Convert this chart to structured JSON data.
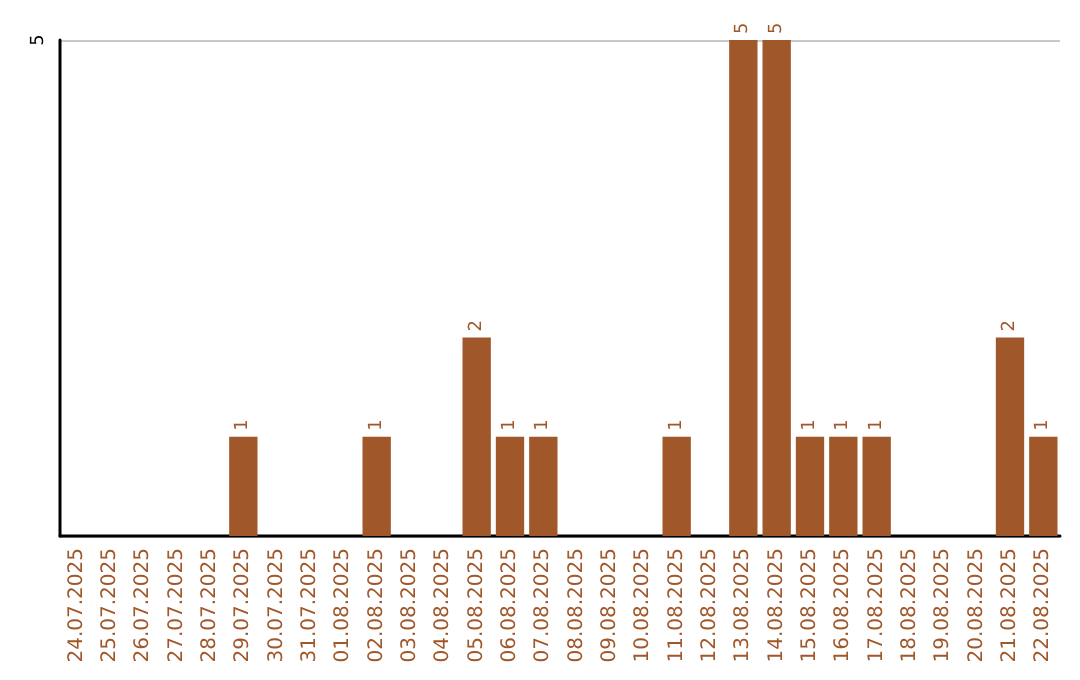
{
  "chart_data": {
    "type": "bar",
    "categories": [
      "24.07.2025",
      "25.07.2025",
      "26.07.2025",
      "27.07.2025",
      "28.07.2025",
      "29.07.2025",
      "30.07.2025",
      "31.07.2025",
      "01.08.2025",
      "02.08.2025",
      "03.08.2025",
      "04.08.2025",
      "05.08.2025",
      "06.08.2025",
      "07.08.2025",
      "08.08.2025",
      "09.08.2025",
      "10.08.2025",
      "11.08.2025",
      "12.08.2025",
      "13.08.2025",
      "14.08.2025",
      "15.08.2025",
      "16.08.2025",
      "17.08.2025",
      "18.08.2025",
      "19.08.2025",
      "20.08.2025",
      "21.08.2025",
      "22.08.2025"
    ],
    "values": [
      0,
      0,
      0,
      0,
      0,
      1,
      0,
      0,
      0,
      1,
      0,
      0,
      2,
      1,
      1,
      0,
      0,
      0,
      1,
      0,
      5,
      5,
      1,
      1,
      1,
      0,
      0,
      0,
      2,
      1
    ],
    "value_labels": [
      null,
      null,
      null,
      null,
      null,
      "1",
      null,
      null,
      null,
      "1",
      null,
      null,
      "2",
      "1",
      "1",
      null,
      null,
      null,
      "1",
      null,
      "5",
      "5",
      "1",
      "1",
      "1",
      null,
      null,
      null,
      "2",
      "1"
    ],
    "color": "#a0572a",
    "ylim": [
      0,
      5
    ],
    "yticks": [
      5
    ],
    "grid": "y"
  }
}
